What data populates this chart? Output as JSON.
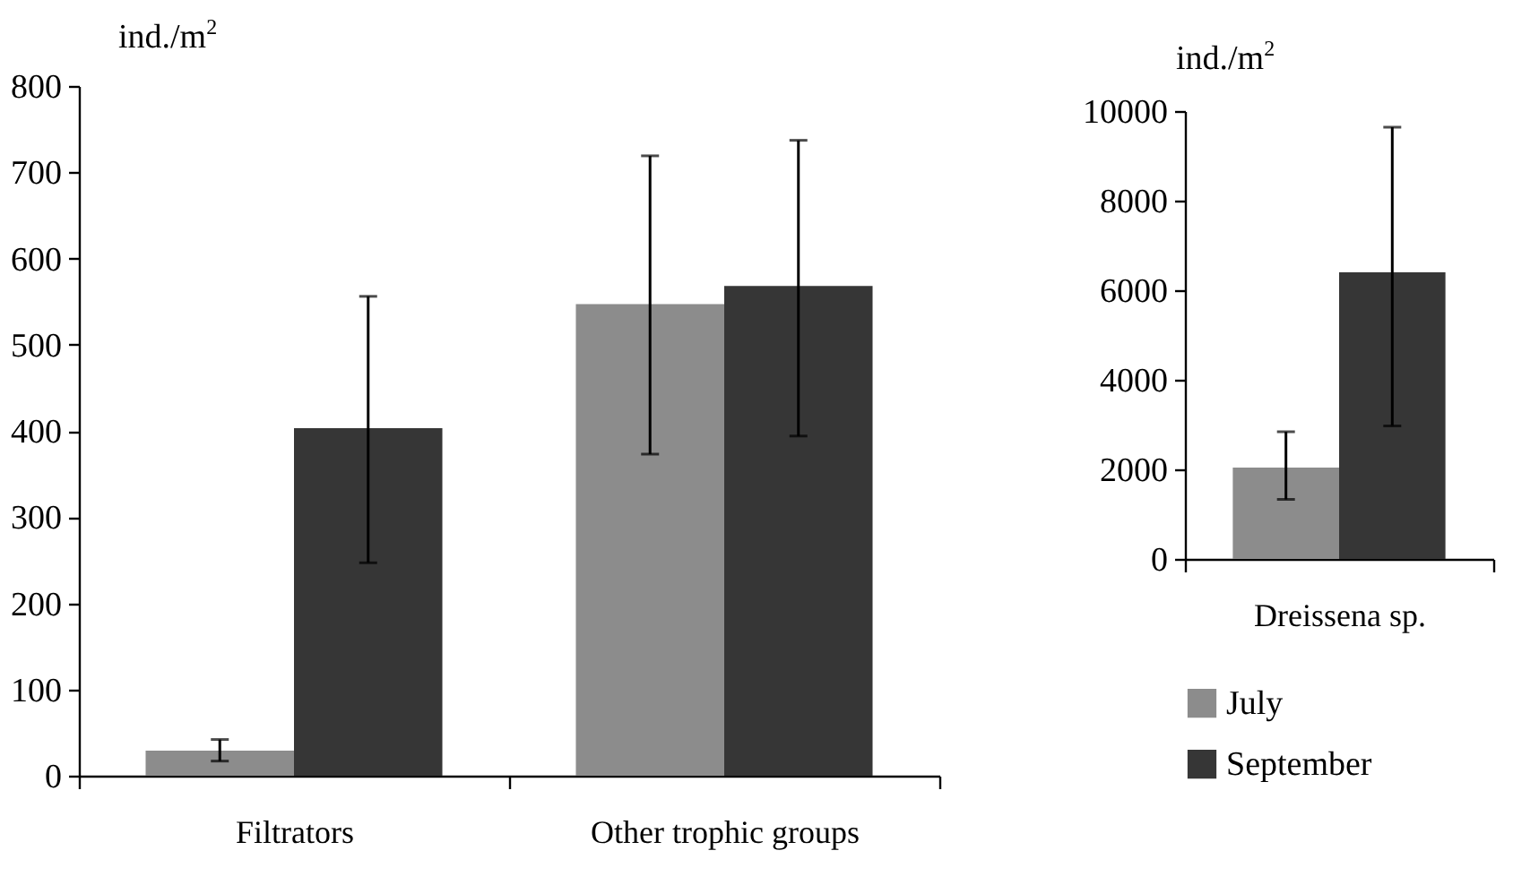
{
  "chart_data": [
    {
      "type": "bar",
      "ylabel": "ind./m$^{2}$",
      "categories": [
        "Filtrators",
        "Other trophic groups"
      ],
      "ylim": [
        0,
        800
      ],
      "yticks": [
        0,
        100,
        200,
        300,
        400,
        500,
        600,
        700,
        800
      ],
      "grid": false,
      "series": [
        {
          "color": "#8c8c8c",
          "values": [
            29,
            547
          ],
          "errors": [
            [
              17,
              42
            ],
            [
              373,
              719
            ]
          ]
        },
        {
          "color": "#363636",
          "values": [
            403,
            568
          ],
          "errors": [
            [
              247,
              556
            ],
            [
              394,
              737
            ]
          ]
        }
      ]
    },
    {
      "type": "bar",
      "ylabel": "ind./m$^{2}$",
      "categories": [
        "Dreissena sp."
      ],
      "ylim": [
        0,
        10000
      ],
      "yticks": [
        0,
        2000,
        4000,
        6000,
        8000,
        10000
      ],
      "grid": false,
      "legend": "bottom",
      "series": [
        {
          "name": "July",
          "color": "#8c8c8c",
          "values": [
            2040
          ],
          "errors": [
            [
              1330,
              2840
            ]
          ]
        },
        {
          "name": "September",
          "color": "#363636",
          "values": [
            6400
          ],
          "errors": [
            [
              2970,
              9640
            ]
          ]
        }
      ]
    }
  ]
}
